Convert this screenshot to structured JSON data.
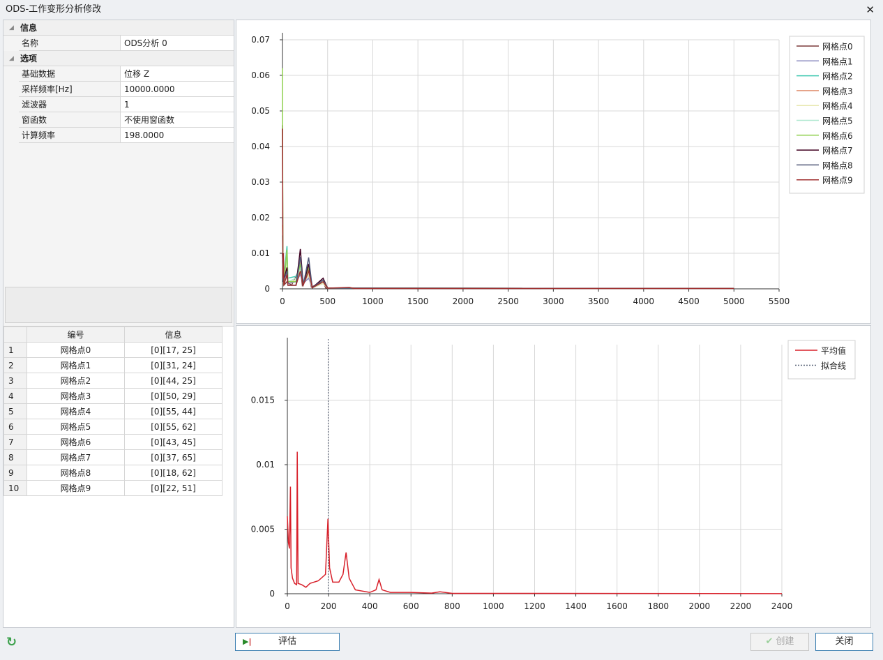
{
  "window": {
    "title": "ODS-工作变形分析修改",
    "close_icon": "close-icon"
  },
  "properties": {
    "categories": [
      {
        "label": "信息",
        "rows": [
          {
            "key": "名称",
            "value": "ODS分析 0"
          }
        ]
      },
      {
        "label": "选项",
        "rows": [
          {
            "key": "基础数据",
            "value": "位移 Z"
          },
          {
            "key": "采样频率[Hz]",
            "value": "10000.0000"
          },
          {
            "key": "滤波器",
            "value": "1"
          },
          {
            "key": "窗函数",
            "value": "不使用窗函数"
          },
          {
            "key": "计算频率",
            "value": "198.0000"
          }
        ]
      }
    ]
  },
  "points_table": {
    "columns": [
      "编号",
      "信息"
    ],
    "rows": [
      {
        "n": "1",
        "id": "网格点0",
        "info": "[0][17, 25]"
      },
      {
        "n": "2",
        "id": "网格点1",
        "info": "[0][31, 24]"
      },
      {
        "n": "3",
        "id": "网格点2",
        "info": "[0][44, 25]"
      },
      {
        "n": "4",
        "id": "网格点3",
        "info": "[0][50, 29]"
      },
      {
        "n": "5",
        "id": "网格点4",
        "info": "[0][55, 44]"
      },
      {
        "n": "6",
        "id": "网格点5",
        "info": "[0][55, 62]"
      },
      {
        "n": "7",
        "id": "网格点6",
        "info": "[0][43, 45]"
      },
      {
        "n": "8",
        "id": "网格点7",
        "info": "[0][37, 65]"
      },
      {
        "n": "9",
        "id": "网格点8",
        "info": "[0][18, 62]"
      },
      {
        "n": "10",
        "id": "网格点9",
        "info": "[0][22, 51]"
      }
    ]
  },
  "chart_data": [
    {
      "type": "line",
      "xlim": [
        0,
        5500
      ],
      "ylim": [
        0,
        0.07
      ],
      "xticks": [
        0,
        500,
        1000,
        1500,
        2000,
        2500,
        3000,
        3500,
        4000,
        4500,
        5000,
        5500
      ],
      "yticks": [
        0,
        0.01,
        0.02,
        0.03,
        0.04,
        0.05,
        0.06,
        0.07
      ],
      "grid": true,
      "legend": "top-right",
      "series": [
        {
          "name": "网格点0",
          "color": "#7b3a3a",
          "points": [
            [
              0,
              0.046
            ],
            [
              5,
              0.004
            ],
            [
              10,
              0.01
            ],
            [
              15,
              0.001
            ],
            [
              50,
              0.002
            ],
            [
              100,
              0.001
            ],
            [
              198,
              0.006
            ],
            [
              220,
              0.001
            ],
            [
              290,
              0.004
            ],
            [
              320,
              0.0005
            ],
            [
              450,
              0.002
            ],
            [
              480,
              0.0002
            ],
            [
              5000,
              0.0001
            ]
          ]
        },
        {
          "name": "网格点1",
          "color": "#8c8cc0",
          "points": [
            [
              0,
              0.02
            ],
            [
              10,
              0.003
            ],
            [
              50,
              0.004
            ],
            [
              60,
              0.0015
            ],
            [
              150,
              0.002
            ],
            [
              198,
              0.004
            ],
            [
              230,
              0.0015
            ],
            [
              290,
              0.003
            ],
            [
              330,
              0.0003
            ],
            [
              450,
              0.0015
            ],
            [
              500,
              0.0002
            ],
            [
              5000,
              0.0001
            ]
          ]
        },
        {
          "name": "网格点2",
          "color": "#40c8b0",
          "points": [
            [
              0,
              0.015
            ],
            [
              10,
              0.002
            ],
            [
              50,
              0.012
            ],
            [
              60,
              0.003
            ],
            [
              150,
              0.0035
            ],
            [
              198,
              0.006
            ],
            [
              230,
              0.002
            ],
            [
              290,
              0.004
            ],
            [
              330,
              0.0004
            ],
            [
              450,
              0.002
            ],
            [
              500,
              0.0002
            ],
            [
              5000,
              0.0001
            ]
          ]
        },
        {
          "name": "网格点3",
          "color": "#e09070",
          "points": [
            [
              0,
              0.018
            ],
            [
              10,
              0.002
            ],
            [
              50,
              0.01
            ],
            [
              60,
              0.002
            ],
            [
              150,
              0.002
            ],
            [
              198,
              0.008
            ],
            [
              230,
              0.0015
            ],
            [
              290,
              0.006
            ],
            [
              330,
              0.0003
            ],
            [
              450,
              0.0025
            ],
            [
              500,
              0.0002
            ],
            [
              5000,
              0.0001
            ]
          ]
        },
        {
          "name": "网格点4",
          "color": "#e8e8b0",
          "points": [
            [
              0,
              0.01
            ],
            [
              10,
              0.002
            ],
            [
              50,
              0.008
            ],
            [
              60,
              0.002
            ],
            [
              150,
              0.0025
            ],
            [
              198,
              0.005
            ],
            [
              230,
              0.0015
            ],
            [
              290,
              0.004
            ],
            [
              330,
              0.0003
            ],
            [
              450,
              0.0015
            ],
            [
              500,
              0.0002
            ],
            [
              5000,
              0.0001
            ]
          ]
        },
        {
          "name": "网格点5",
          "color": "#b0e8d0",
          "points": [
            [
              0,
              0.012
            ],
            [
              10,
              0.002
            ],
            [
              50,
              0.009
            ],
            [
              60,
              0.002
            ],
            [
              150,
              0.003
            ],
            [
              198,
              0.006
            ],
            [
              230,
              0.002
            ],
            [
              290,
              0.005
            ],
            [
              330,
              0.0003
            ],
            [
              450,
              0.002
            ],
            [
              500,
              0.0002
            ],
            [
              5000,
              0.0001
            ]
          ]
        },
        {
          "name": "网格点6",
          "color": "#90d050",
          "points": [
            [
              0,
              0.062
            ],
            [
              5,
              0.005
            ],
            [
              10,
              0.008
            ],
            [
              15,
              0.001
            ],
            [
              50,
              0.011
            ],
            [
              60,
              0.002
            ],
            [
              150,
              0.002
            ],
            [
              198,
              0.007
            ],
            [
              230,
              0.0015
            ],
            [
              290,
              0.006
            ],
            [
              330,
              0.0003
            ],
            [
              450,
              0.002
            ],
            [
              500,
              0.0002
            ],
            [
              5000,
              0.0001
            ]
          ]
        },
        {
          "name": "网格点7",
          "color": "#400020",
          "points": [
            [
              0,
              0.01
            ],
            [
              10,
              0.002
            ],
            [
              50,
              0.006
            ],
            [
              60,
              0.001
            ],
            [
              150,
              0.001
            ],
            [
              198,
              0.0112
            ],
            [
              230,
              0.001
            ],
            [
              290,
              0.007
            ],
            [
              330,
              0.0003
            ],
            [
              450,
              0.003
            ],
            [
              500,
              0.0002
            ],
            [
              5000,
              0.0001
            ]
          ]
        },
        {
          "name": "网格点8",
          "color": "#505878",
          "points": [
            [
              0,
              0.008
            ],
            [
              10,
              0.002
            ],
            [
              50,
              0.005
            ],
            [
              60,
              0.001
            ],
            [
              150,
              0.001
            ],
            [
              198,
              0.009
            ],
            [
              230,
              0.001
            ],
            [
              290,
              0.0088
            ],
            [
              330,
              0.0003
            ],
            [
              450,
              0.0025
            ],
            [
              500,
              0.0002
            ],
            [
              5000,
              0.0001
            ]
          ]
        },
        {
          "name": "网格点9",
          "color": "#a03030",
          "points": [
            [
              0,
              0.045
            ],
            [
              5,
              0.003
            ],
            [
              10,
              0.01
            ],
            [
              15,
              0.001
            ],
            [
              50,
              0.004
            ],
            [
              60,
              0.001
            ],
            [
              150,
              0.001
            ],
            [
              198,
              0.005
            ],
            [
              230,
              0.001
            ],
            [
              290,
              0.005
            ],
            [
              330,
              0.0003
            ],
            [
              450,
              0.002
            ],
            [
              500,
              0.0002
            ],
            [
              740,
              0.0004
            ],
            [
              800,
              0.0001
            ],
            [
              5000,
              0.0001
            ]
          ]
        }
      ]
    },
    {
      "type": "line",
      "xlim": [
        0,
        2400
      ],
      "ylim": [
        0,
        0.0193
      ],
      "xticks": [
        0,
        200,
        400,
        600,
        800,
        1000,
        1200,
        1400,
        1600,
        1800,
        2000,
        2200,
        2400
      ],
      "yticks": [
        0,
        0.005,
        0.01,
        0.015
      ],
      "grid": true,
      "legend": "top-right",
      "fit_line_x": 198,
      "series": [
        {
          "name": "平均值",
          "color": "#d8202a",
          "points": [
            [
              0,
              0.006
            ],
            [
              5,
              0.004
            ],
            [
              10,
              0.0035
            ],
            [
              15,
              0.0083
            ],
            [
              18,
              0.002
            ],
            [
              25,
              0.0012
            ],
            [
              35,
              0.0008
            ],
            [
              45,
              0.0007
            ],
            [
              48,
              0.011
            ],
            [
              52,
              0.0008
            ],
            [
              70,
              0.0007
            ],
            [
              90,
              0.0005
            ],
            [
              110,
              0.0008
            ],
            [
              150,
              0.001
            ],
            [
              185,
              0.0015
            ],
            [
              197,
              0.0058
            ],
            [
              205,
              0.002
            ],
            [
              220,
              0.0009
            ],
            [
              250,
              0.0009
            ],
            [
              270,
              0.0015
            ],
            [
              285,
              0.0032
            ],
            [
              300,
              0.0012
            ],
            [
              330,
              0.0003
            ],
            [
              400,
              0.0001
            ],
            [
              430,
              0.0003
            ],
            [
              445,
              0.0011
            ],
            [
              460,
              0.0003
            ],
            [
              500,
              0.0001
            ],
            [
              600,
              0.0001
            ],
            [
              700,
              5e-05
            ],
            [
              740,
              0.00015
            ],
            [
              800,
              3e-05
            ],
            [
              2400,
              1e-05
            ]
          ]
        },
        {
          "name": "拟合线",
          "color": "#505a70",
          "dashed": true
        }
      ]
    }
  ],
  "footer": {
    "refresh_icon": "refresh-icon",
    "evaluate": "评估",
    "create": "创建",
    "close": "关闭"
  }
}
